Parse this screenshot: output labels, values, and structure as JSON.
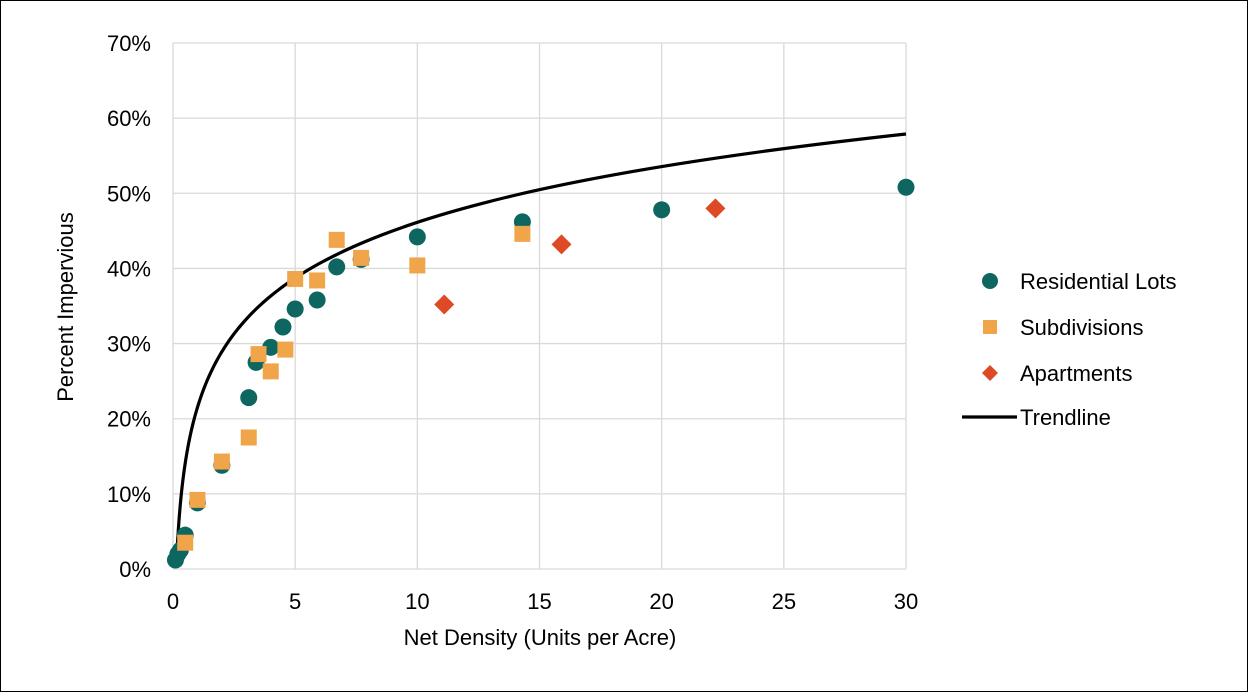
{
  "chart_data": {
    "type": "scatter",
    "title": "",
    "xlabel": "Net Density (Units per Acre)",
    "ylabel": "Percent Impervious",
    "xlim": [
      0,
      30
    ],
    "ylim": [
      0,
      0.7
    ],
    "x_ticks": [
      0,
      5,
      10,
      15,
      20,
      25,
      30
    ],
    "y_ticks": [
      0,
      0.1,
      0.2,
      0.3,
      0.4,
      0.5,
      0.6,
      0.7
    ],
    "x_tick_labels": [
      "0",
      "5",
      "10",
      "15",
      "20",
      "25",
      "30"
    ],
    "y_tick_labels": [
      "0%",
      "10%",
      "20%",
      "30%",
      "40%",
      "50%",
      "60%",
      "70%"
    ],
    "grid": true,
    "legend_position": "right",
    "series": [
      {
        "name": "Residential Lots",
        "marker": "circle",
        "color": "#0e6660",
        "points": [
          [
            0.1,
            0.012
          ],
          [
            0.2,
            0.02
          ],
          [
            0.3,
            0.025
          ],
          [
            0.5,
            0.045
          ],
          [
            1.0,
            0.088
          ],
          [
            2.0,
            0.138
          ],
          [
            3.1,
            0.228
          ],
          [
            3.4,
            0.275
          ],
          [
            4.0,
            0.295
          ],
          [
            4.5,
            0.322
          ],
          [
            5.0,
            0.346
          ],
          [
            5.9,
            0.358
          ],
          [
            6.7,
            0.402
          ],
          [
            7.7,
            0.412
          ],
          [
            10.0,
            0.442
          ],
          [
            14.3,
            0.462
          ],
          [
            20.0,
            0.478
          ],
          [
            30.0,
            0.508
          ]
        ]
      },
      {
        "name": "Subdivisions",
        "marker": "square",
        "color": "#f0a54a",
        "points": [
          [
            0.5,
            0.035
          ],
          [
            1.0,
            0.092
          ],
          [
            2.0,
            0.143
          ],
          [
            3.1,
            0.175
          ],
          [
            3.5,
            0.286
          ],
          [
            4.0,
            0.263
          ],
          [
            4.6,
            0.292
          ],
          [
            5.0,
            0.386
          ],
          [
            5.9,
            0.384
          ],
          [
            6.7,
            0.438
          ],
          [
            7.7,
            0.414
          ],
          [
            10.0,
            0.404
          ],
          [
            14.3,
            0.446
          ]
        ]
      },
      {
        "name": "Apartments",
        "marker": "diamond",
        "color": "#de4a26",
        "points": [
          [
            11.1,
            0.352
          ],
          [
            15.9,
            0.432
          ],
          [
            22.2,
            0.48
          ]
        ]
      }
    ],
    "trendline": {
      "name": "Trendline",
      "type": "logarithmic",
      "coefficient": 0.107,
      "intercept": 0.215,
      "x_start": 0.15,
      "x_end": 30,
      "color": "#000000"
    }
  }
}
